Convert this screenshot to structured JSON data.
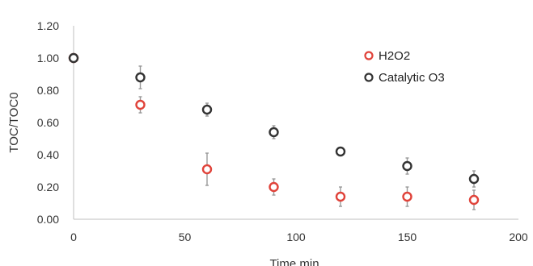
{
  "chart_data": {
    "type": "scatter",
    "title": "",
    "xlabel": "Time min",
    "ylabel": "TOC/TOC0",
    "xlim": [
      0,
      200
    ],
    "ylim": [
      0,
      1.2
    ],
    "x_ticks": [
      0,
      50,
      100,
      150,
      200
    ],
    "x_tick_labels": [
      "0",
      "50",
      "100",
      "150",
      "200"
    ],
    "y_ticks": [
      0,
      0.2,
      0.4,
      0.6,
      0.8,
      1.0,
      1.2
    ],
    "y_tick_labels": [
      "0.00",
      "0.20",
      "0.40",
      "0.60",
      "0.80",
      "1.00",
      "1.20"
    ],
    "grid": false,
    "legend_position": "top-right",
    "marker": "open-circle",
    "series": [
      {
        "name": "H2O2",
        "color": "#e0433a",
        "x": [
          0,
          30,
          60,
          90,
          120,
          150,
          180
        ],
        "y": [
          1.0,
          0.71,
          0.31,
          0.2,
          0.14,
          0.14,
          0.12
        ],
        "error": [
          0.0,
          0.05,
          0.1,
          0.05,
          0.06,
          0.06,
          0.06
        ]
      },
      {
        "name": "Catalytic O3",
        "color": "#333333",
        "x": [
          0,
          30,
          60,
          90,
          120,
          150,
          180
        ],
        "y": [
          1.0,
          0.88,
          0.68,
          0.54,
          0.42,
          0.33,
          0.25
        ],
        "error": [
          0.0,
          0.07,
          0.04,
          0.04,
          0.02,
          0.05,
          0.05
        ]
      }
    ]
  }
}
